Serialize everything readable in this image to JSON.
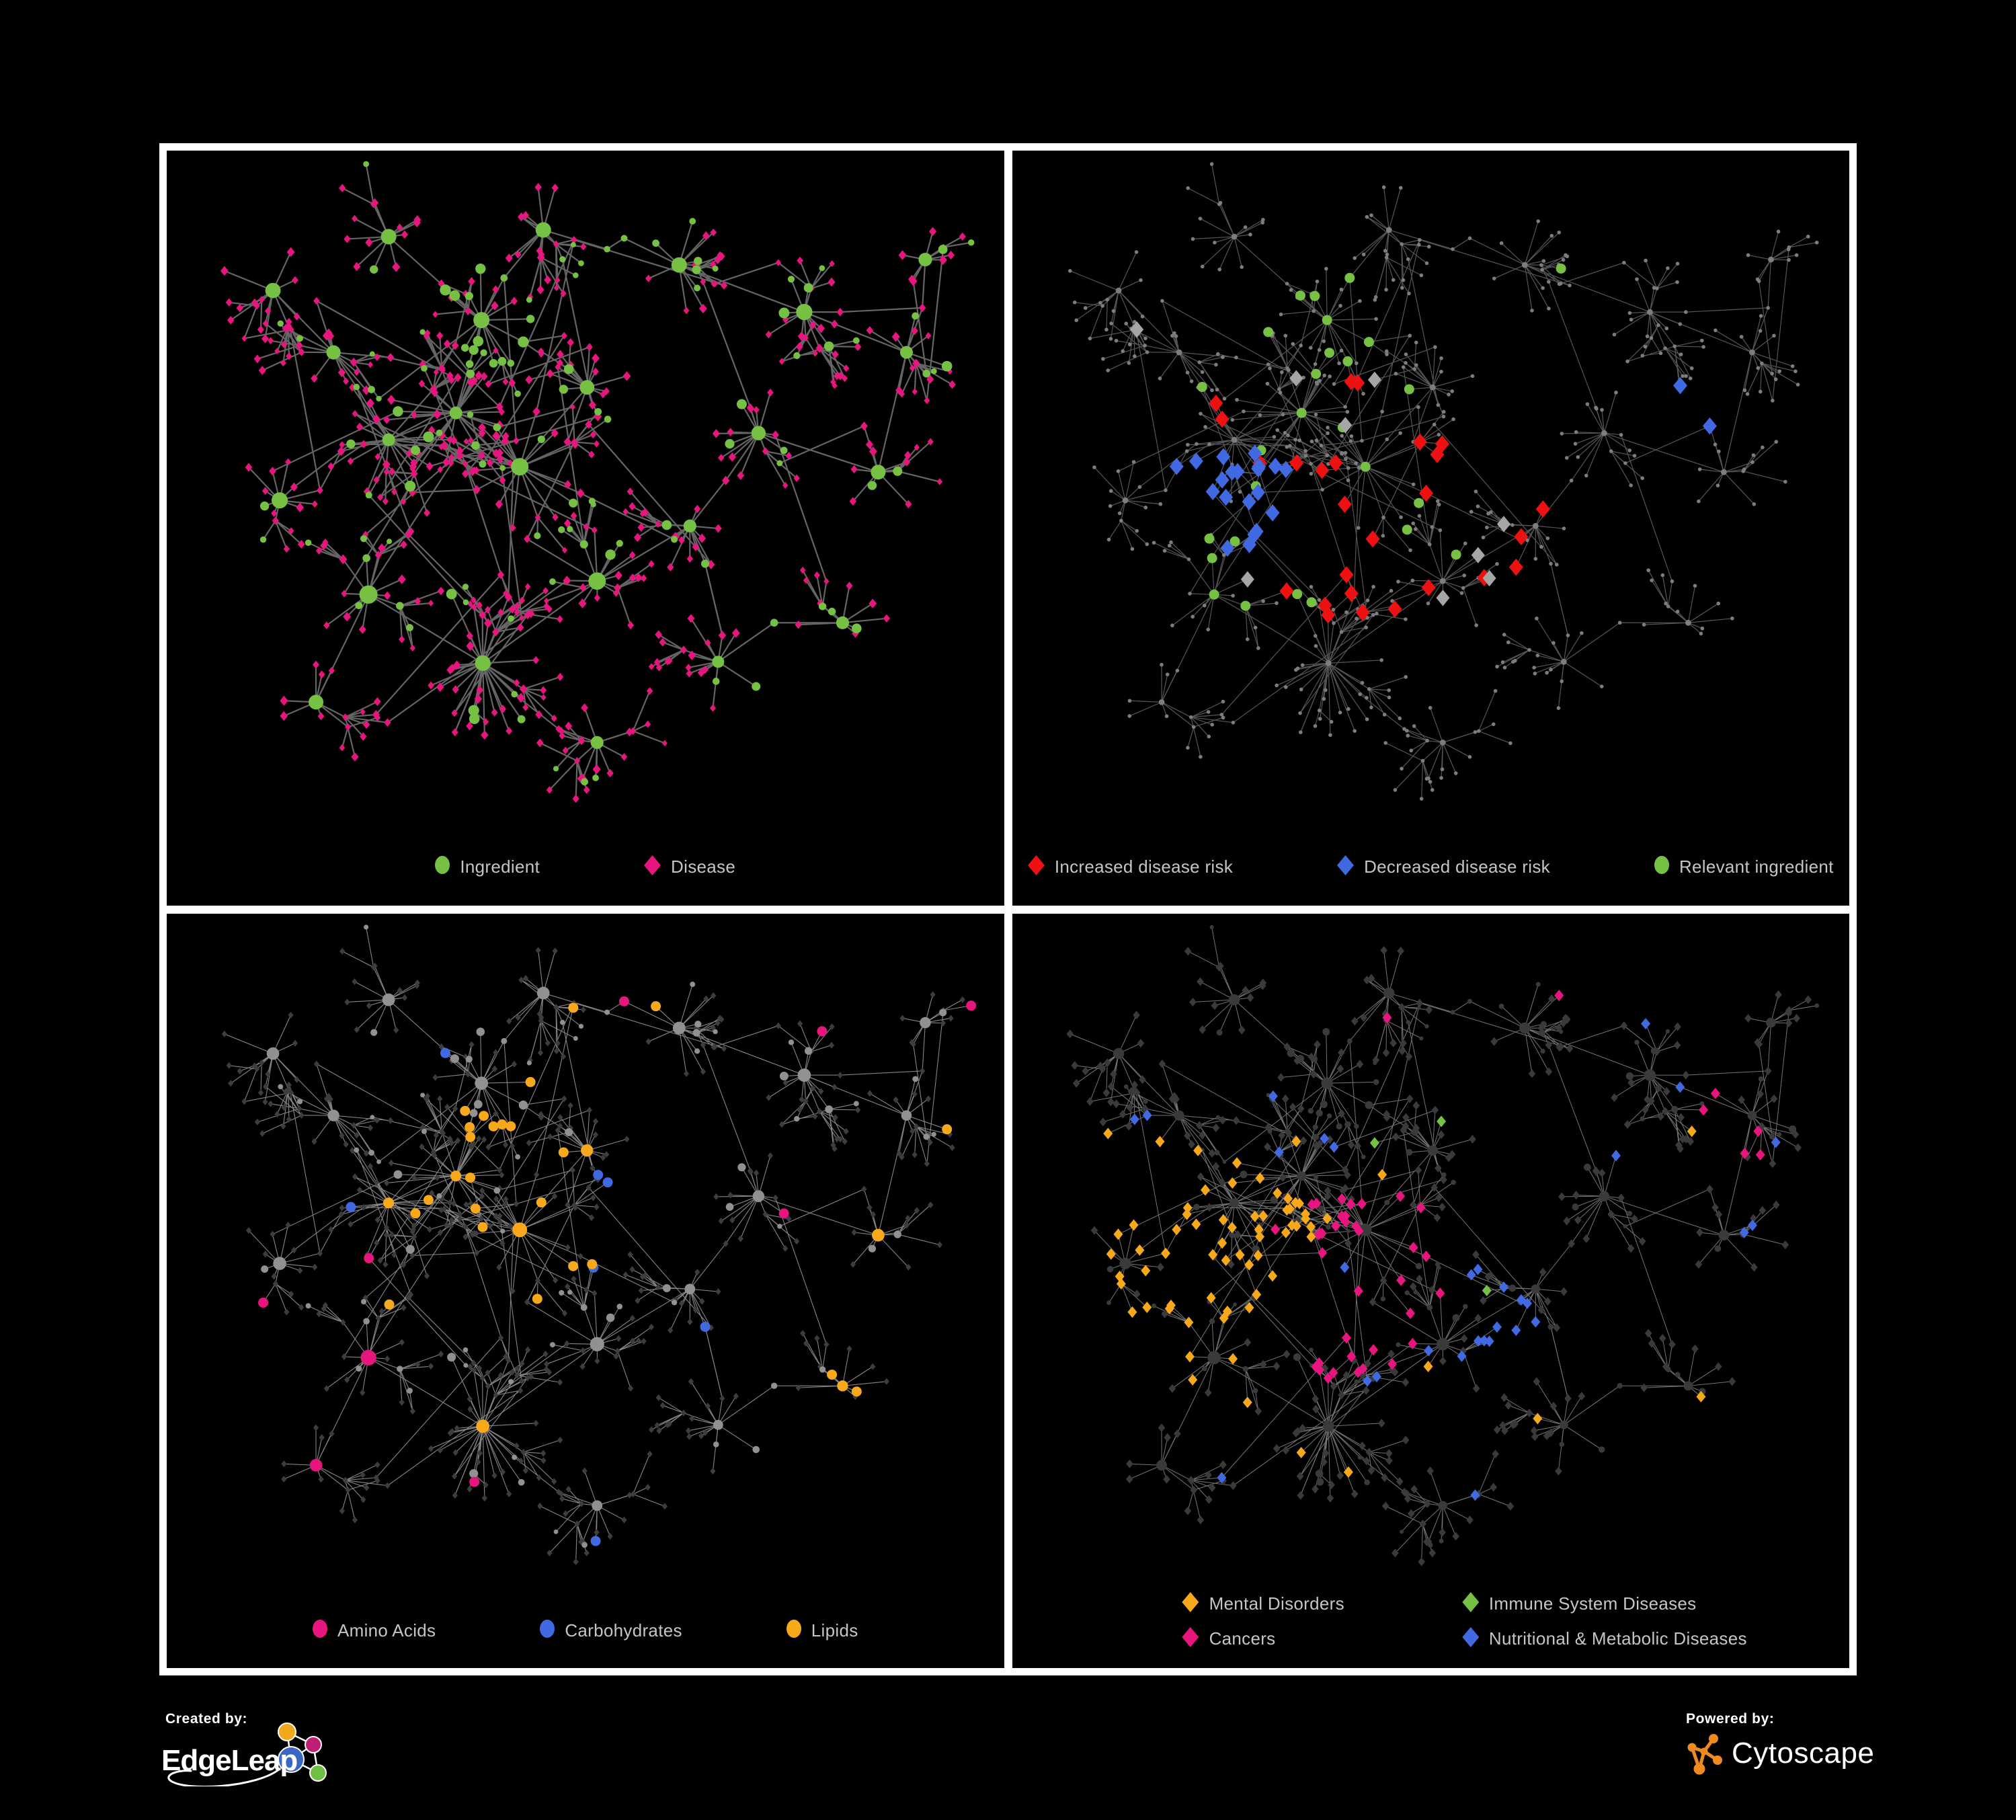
{
  "frame": {
    "background": "#000000",
    "border": "#ffffff",
    "legend_text": "#c5c5c5"
  },
  "panels": [
    {
      "id": "ingredient-disease",
      "legend": {
        "items": [
          {
            "label": "Ingredient",
            "shape": "circle",
            "color": "#76c043"
          },
          {
            "label": "Disease",
            "shape": "diamond",
            "color": "#e7157e"
          }
        ]
      },
      "style": {
        "edge": "#707070",
        "edge_width": 2.2,
        "edge_opacity": 0.9,
        "ingredient": "#76c043",
        "disease": "#e7157e"
      }
    },
    {
      "id": "disease-risk",
      "legend": {
        "items": [
          {
            "label": "Increased disease risk",
            "shape": "diamond",
            "color": "#ee1111"
          },
          {
            "label": "Decreased disease risk",
            "shape": "diamond",
            "color": "#4169e1"
          },
          {
            "label": "Relevant ingredient",
            "shape": "circle",
            "color": "#76c043"
          }
        ]
      },
      "style": {
        "edge": "#606060",
        "edge_width": 1.2,
        "edge_opacity": 0.9,
        "dot": "#7d7d7d",
        "red": "#ee1111",
        "blue": "#4169e1",
        "gray": "#a6a6a6",
        "green": "#76c043"
      }
    },
    {
      "id": "nutrient-classes",
      "legend": {
        "items": [
          {
            "label": "Amino Acids",
            "shape": "circle",
            "color": "#e7157e"
          },
          {
            "label": "Carbohydrates",
            "shape": "circle",
            "color": "#4169e1"
          },
          {
            "label": "Lipids",
            "shape": "circle",
            "color": "#f7a81b"
          }
        ]
      },
      "style": {
        "edge": "#9e9e9e",
        "edge_width": 1.1,
        "edge_opacity": 0.85,
        "disease": "#3d3d3d",
        "ingredient": "#919191",
        "pink": "#e7157e",
        "blue": "#4169e1",
        "orange": "#f7a81b"
      }
    },
    {
      "id": "disease-categories",
      "legend": {
        "items": [
          {
            "label": "Mental Disorders",
            "shape": "diamond",
            "color": "#f7a81b"
          },
          {
            "label": "Immune System Diseases",
            "shape": "diamond",
            "color": "#76c043"
          },
          {
            "label": "Cancers",
            "shape": "diamond",
            "color": "#e7157e"
          },
          {
            "label": "Nutritional & Metabolic Diseases",
            "shape": "diamond",
            "color": "#4169e1"
          }
        ]
      },
      "style": {
        "edge": "#8a8a8a",
        "edge_width": 1.0,
        "edge_opacity": 0.85,
        "base": "#3a3a3a",
        "orange": "#f7a81b",
        "green": "#76c043",
        "pink": "#e7157e",
        "blue": "#4169e1"
      }
    }
  ],
  "footer": {
    "created_by_label": "Created by:",
    "edgeleap_text": "EdgeLeap",
    "powered_by_label": "Powered by:",
    "cytoscape_text": "Cytoscape",
    "edgeleap_colors": {
      "orange": "#f2a71c",
      "magenta": "#c01d74",
      "blue": "#3b66c4",
      "green": "#6fbf44"
    },
    "cytoscape_orange": "#ee8a1e"
  }
}
